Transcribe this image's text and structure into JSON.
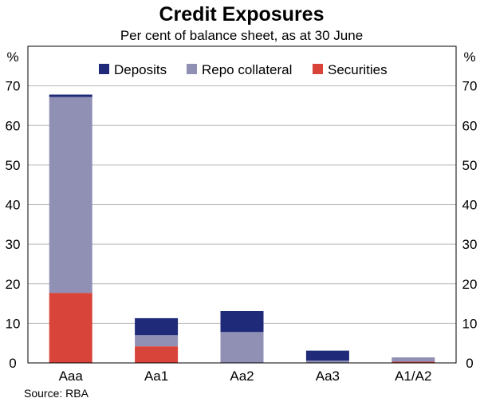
{
  "chart_data": {
    "type": "bar",
    "stacked": true,
    "title": "Credit Exposures",
    "subtitle": "Per cent of balance sheet, as at 30 June",
    "y_unit_left": "%",
    "y_unit_right": "%",
    "ylim": [
      0,
      80
    ],
    "yticks": [
      0,
      10,
      20,
      30,
      40,
      50,
      60,
      70
    ],
    "categories": [
      "Aaa",
      "Aa1",
      "Aa2",
      "Aa3",
      "A1/A2"
    ],
    "series": [
      {
        "name": "Securities",
        "color": "#d9443a",
        "values": [
          17.7,
          4.2,
          0,
          0,
          0.3
        ]
      },
      {
        "name": "Repo collateral",
        "color": "#9090b4",
        "values": [
          49.5,
          2.8,
          7.8,
          0.6,
          1.1
        ]
      },
      {
        "name": "Deposits",
        "color": "#1f2a78",
        "values": [
          0.6,
          4.3,
          5.3,
          2.5,
          0
        ]
      }
    ],
    "legend": [
      "Deposits",
      "Repo collateral",
      "Securities"
    ],
    "legend_position": "top-right",
    "grid": true,
    "source": "Source: RBA"
  }
}
